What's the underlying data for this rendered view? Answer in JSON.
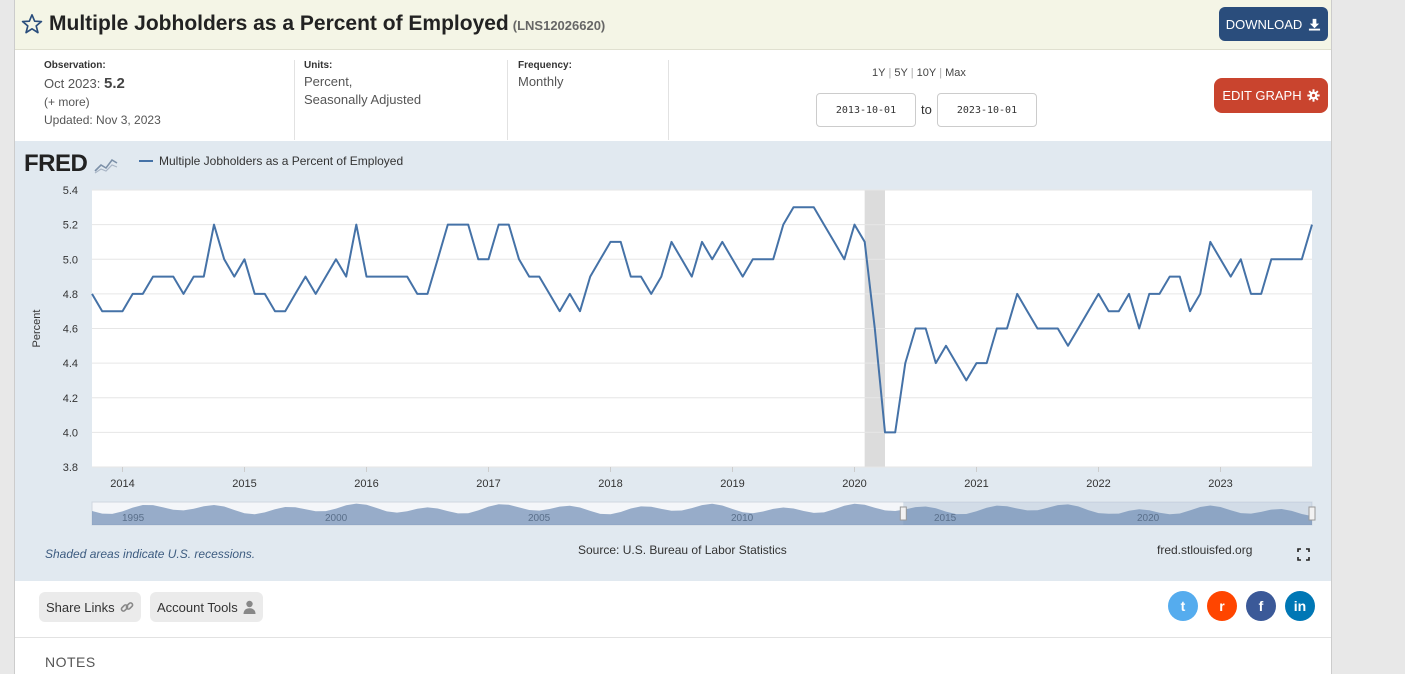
{
  "header": {
    "title": "Multiple Jobholders as a Percent of Employed",
    "series_id": "(LNS12026620)",
    "download_label": "DOWNLOAD",
    "edit_graph_label": "EDIT GRAPH"
  },
  "meta": {
    "observation_label": "Observation:",
    "observation_date": "Oct 2023:",
    "observation_value": "5.2",
    "more": "(+ more)",
    "updated": "Updated: Nov 3, 2023",
    "units_label": "Units:",
    "units_line1": "Percent,",
    "units_line2": "Seasonally Adjusted",
    "frequency_label": "Frequency:",
    "frequency_value": "Monthly"
  },
  "range": {
    "options": [
      "1Y",
      "5Y",
      "10Y",
      "Max"
    ],
    "start": "2013-10-01",
    "to": "to",
    "end": "2023-10-01"
  },
  "graph": {
    "logo": "FRED",
    "legend_label": "Multiple Jobholders as a Percent of Employed",
    "ylabel": "Percent",
    "recession_note": "Shaded areas indicate U.S. recessions.",
    "source": "Source: U.S. Bureau of Labor Statistics",
    "site": "fred.stlouisfed.org",
    "navigator_labels": [
      "1995",
      "2000",
      "2005",
      "2010",
      "2015",
      "2020"
    ]
  },
  "colors": {
    "line": "#4572a7",
    "download_bg": "#2a4d7c",
    "edit_bg": "#c9442e",
    "recession": "#dcdcdc",
    "twitter": "#55acee",
    "reddit": "#ff4500",
    "facebook": "#3b5998",
    "linkedin": "#0077b5"
  },
  "footer": {
    "share_links": "Share Links",
    "account_tools": "Account Tools",
    "notes_heading": "NOTES",
    "social": [
      {
        "name": "twitter-icon",
        "glyph": "t"
      },
      {
        "name": "reddit-icon",
        "glyph": "r"
      },
      {
        "name": "facebook-icon",
        "glyph": "f"
      },
      {
        "name": "linkedin-icon",
        "glyph": "in"
      }
    ]
  },
  "chart_data": {
    "type": "line",
    "title": "",
    "xlabel": "",
    "ylabel": "Percent",
    "ylim": [
      3.8,
      5.4
    ],
    "yticks": [
      "3.8",
      "4.0",
      "4.2",
      "4.4",
      "4.6",
      "4.8",
      "5.0",
      "5.2",
      "5.4"
    ],
    "xticks": [
      "2014",
      "2015",
      "2016",
      "2017",
      "2018",
      "2019",
      "2020",
      "2021",
      "2022",
      "2023"
    ],
    "x_start": "2013-10",
    "x_end": "2023-10",
    "recession": [
      "2020-02",
      "2020-04"
    ],
    "series": [
      {
        "name": "Multiple Jobholders as a Percent of Employed",
        "values": [
          4.8,
          4.7,
          4.7,
          4.7,
          4.8,
          4.8,
          4.9,
          4.9,
          4.9,
          4.8,
          4.9,
          4.9,
          5.2,
          5.0,
          4.9,
          5.0,
          4.8,
          4.8,
          4.7,
          4.7,
          4.8,
          4.9,
          4.8,
          4.9,
          5.0,
          4.9,
          5.2,
          4.9,
          4.9,
          4.9,
          4.9,
          4.9,
          4.8,
          4.8,
          5.0,
          5.2,
          5.2,
          5.2,
          5.0,
          5.0,
          5.2,
          5.2,
          5.0,
          4.9,
          4.9,
          4.8,
          4.7,
          4.8,
          4.7,
          4.9,
          5.0,
          5.1,
          5.1,
          4.9,
          4.9,
          4.8,
          4.9,
          5.1,
          5.0,
          4.9,
          5.1,
          5.0,
          5.1,
          5.0,
          4.9,
          5.0,
          5.0,
          5.0,
          5.2,
          5.3,
          5.3,
          5.3,
          5.2,
          5.1,
          5.0,
          5.2,
          5.1,
          4.6,
          4.0,
          4.0,
          4.4,
          4.6,
          4.6,
          4.4,
          4.5,
          4.4,
          4.3,
          4.4,
          4.4,
          4.6,
          4.6,
          4.8,
          4.7,
          4.6,
          4.6,
          4.6,
          4.5,
          4.6,
          4.7,
          4.8,
          4.7,
          4.7,
          4.8,
          4.6,
          4.8,
          4.8,
          4.9,
          4.9,
          4.7,
          4.8,
          5.1,
          5.0,
          4.9,
          5.0,
          4.8,
          4.8,
          5.0,
          5.0,
          5.0,
          5.0,
          5.2
        ]
      }
    ]
  }
}
